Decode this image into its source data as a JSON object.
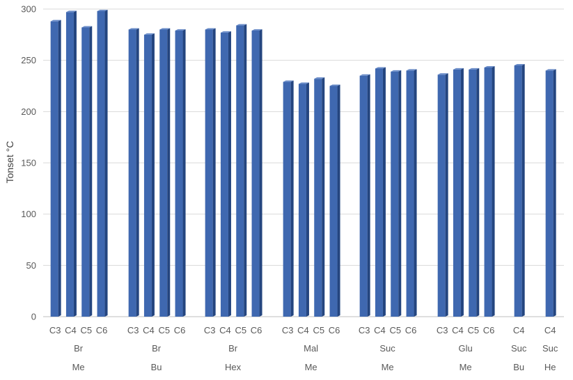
{
  "chart_data": {
    "type": "bar",
    "ylabel": "Tonset °C",
    "ylim": [
      0,
      300
    ],
    "yticks": [
      0,
      50,
      100,
      150,
      200,
      250,
      300
    ],
    "grid": true,
    "legend": "none",
    "colors": {
      "bar_front": "#3f68b0",
      "bar_side": "#24457f",
      "bar_top": "#6a8cc8"
    },
    "groups": [
      {
        "level2": "Br",
        "level3": "Me",
        "categories": [
          "C3",
          "C4",
          "C5",
          "C6"
        ],
        "values": [
          288,
          297,
          282,
          298
        ]
      },
      {
        "level2": "Br",
        "level3": "Bu",
        "categories": [
          "C3",
          "C4",
          "C5",
          "C6"
        ],
        "values": [
          280,
          275,
          280,
          279
        ]
      },
      {
        "level2": "Br",
        "level3": "Hex",
        "categories": [
          "C3",
          "C4",
          "C5",
          "C6"
        ],
        "values": [
          280,
          277,
          284,
          279
        ]
      },
      {
        "level2": "Mal",
        "level3": "Me",
        "categories": [
          "C3",
          "C4",
          "C5",
          "C6"
        ],
        "values": [
          229,
          227,
          232,
          225
        ]
      },
      {
        "level2": "Suc",
        "level3": "Me",
        "categories": [
          "C3",
          "C4",
          "C5",
          "C6"
        ],
        "values": [
          235,
          242,
          239,
          240
        ]
      },
      {
        "level2": "Glu",
        "level3": "Me",
        "categories": [
          "C3",
          "C4",
          "C5",
          "C6"
        ],
        "values": [
          236,
          241,
          241,
          243
        ]
      },
      {
        "level2": "Suc",
        "level3": "Bu",
        "categories": [
          "C4"
        ],
        "values": [
          245
        ]
      },
      {
        "level2": "Suc",
        "level3": "He",
        "categories": [
          "C4"
        ],
        "values": [
          240
        ]
      }
    ]
  }
}
